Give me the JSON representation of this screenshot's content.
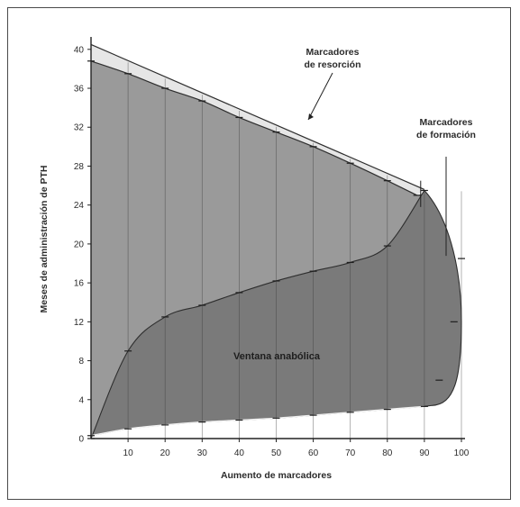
{
  "chart_data": {
    "type": "area",
    "xlabel": "Aumento de marcadores",
    "ylabel": "Meses de administración de PTH",
    "xlim": [
      0,
      100
    ],
    "ylim": [
      0,
      41
    ],
    "x_ticks": [
      "10",
      "20",
      "30",
      "40",
      "50",
      "60",
      "70",
      "80",
      "90",
      "100"
    ],
    "y_ticks": [
      "0",
      "4",
      "8",
      "12",
      "16",
      "20",
      "24",
      "28",
      "32",
      "36",
      "40"
    ],
    "grid": "vertical",
    "series": [
      {
        "name": "Marcadores de resorción",
        "x": [
          0,
          10,
          20,
          30,
          40,
          50,
          60,
          70,
          80,
          88
        ],
        "y": [
          38.8,
          37.5,
          36.0,
          34.7,
          33.0,
          31.5,
          30.0,
          28.3,
          26.5,
          25.0
        ]
      },
      {
        "name": "Marcadores de formación",
        "x": [
          0,
          10,
          20,
          30,
          40,
          50,
          60,
          70,
          80,
          90,
          94,
          98,
          100
        ],
        "y": [
          0.3,
          1.0,
          1.4,
          1.7,
          1.9,
          2.1,
          2.4,
          2.7,
          3.0,
          3.3,
          6,
          12,
          18.5
        ]
      },
      {
        "name": "",
        "x": [
          0,
          10,
          20,
          30,
          40,
          50,
          60,
          70,
          80,
          90
        ],
        "y": [
          0,
          9.0,
          12.5,
          13.7,
          15.0,
          16.2,
          17.2,
          18.1,
          19.8,
          25.5
        ]
      }
    ],
    "annotations": [
      {
        "text": "Marcadores de resorción",
        "lines": [
          "Marcadores",
          "de resorción"
        ]
      },
      {
        "text": "Marcadores de formación",
        "lines": [
          "Marcadores",
          "de formación"
        ]
      },
      {
        "text": "Ventana anabólica",
        "lines": [
          "Ventana anabólica"
        ]
      }
    ],
    "colors": {
      "resorption_band": "#e6e6e6",
      "upper_area": "#9a9a9a",
      "window_area": "#7a7a7a",
      "lines": "#2e2e2e"
    }
  }
}
